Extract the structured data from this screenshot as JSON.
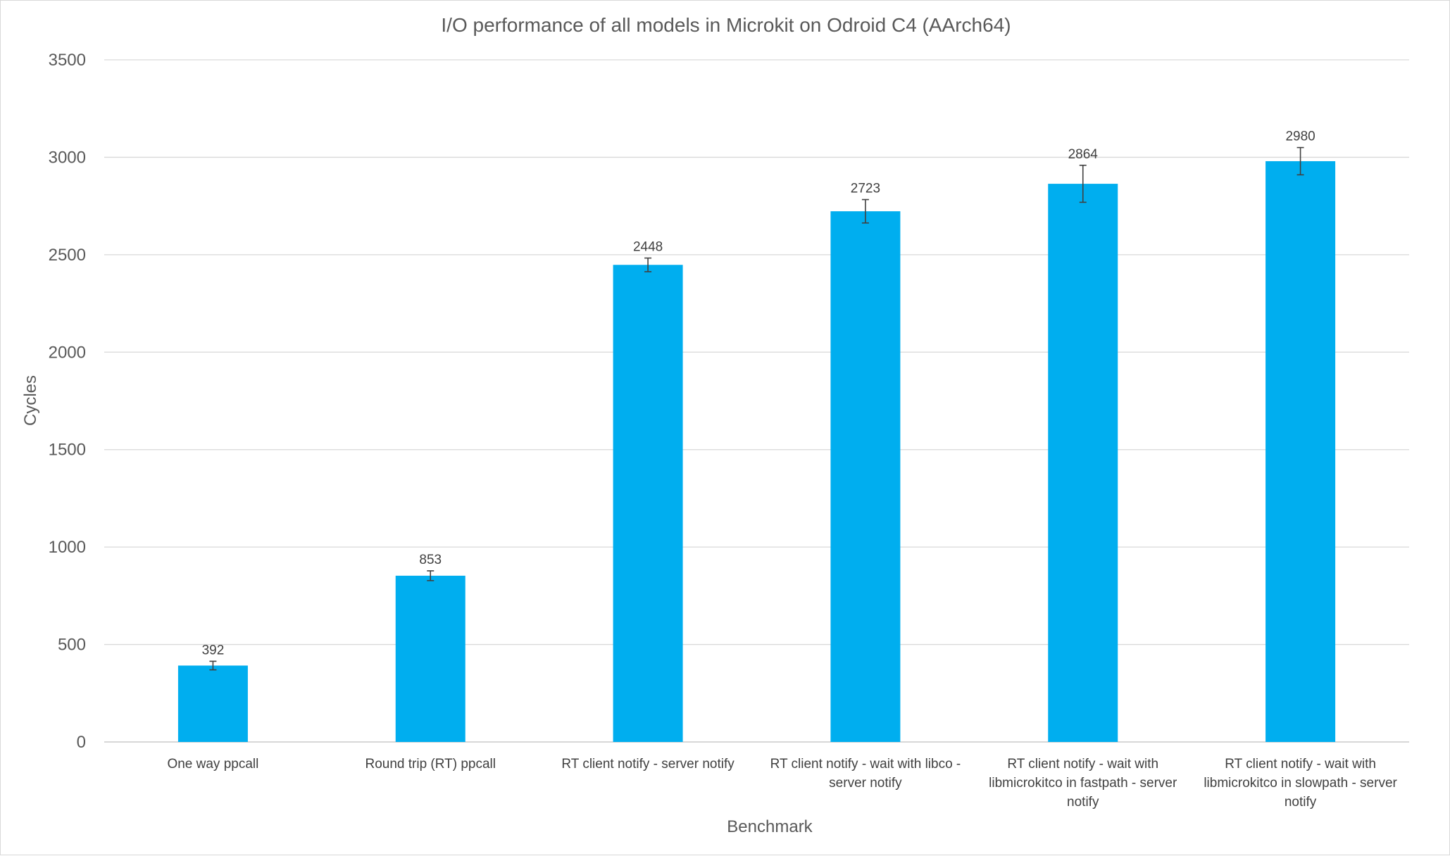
{
  "chart_data": {
    "type": "bar",
    "title": "I/O performance of all models in Microkit on Odroid C4 (AArch64)",
    "xlabel": "Benchmark",
    "ylabel": "Cycles",
    "ylim": [
      0,
      3500
    ],
    "yticks": [
      0,
      500,
      1000,
      1500,
      2000,
      2500,
      3000,
      3500
    ],
    "grid": true,
    "legend": "none",
    "bar_color": "#00AEEF",
    "categories": [
      [
        "One way ppcall"
      ],
      [
        "Round trip (RT) ppcall"
      ],
      [
        "RT client notify - server notify"
      ],
      [
        "RT client notify - wait with libco -",
        "server notify"
      ],
      [
        "RT client notify - wait with",
        "libmicrokitco in fastpath - server",
        "notify"
      ],
      [
        "RT client notify - wait with",
        "libmicrokitco in slowpath - server",
        "notify"
      ]
    ],
    "values": [
      392,
      853,
      2448,
      2723,
      2864,
      2980
    ],
    "data_labels": [
      "392",
      "853",
      "2448",
      "2723",
      "2864",
      "2980"
    ],
    "error": [
      22,
      25,
      35,
      60,
      95,
      70
    ]
  }
}
